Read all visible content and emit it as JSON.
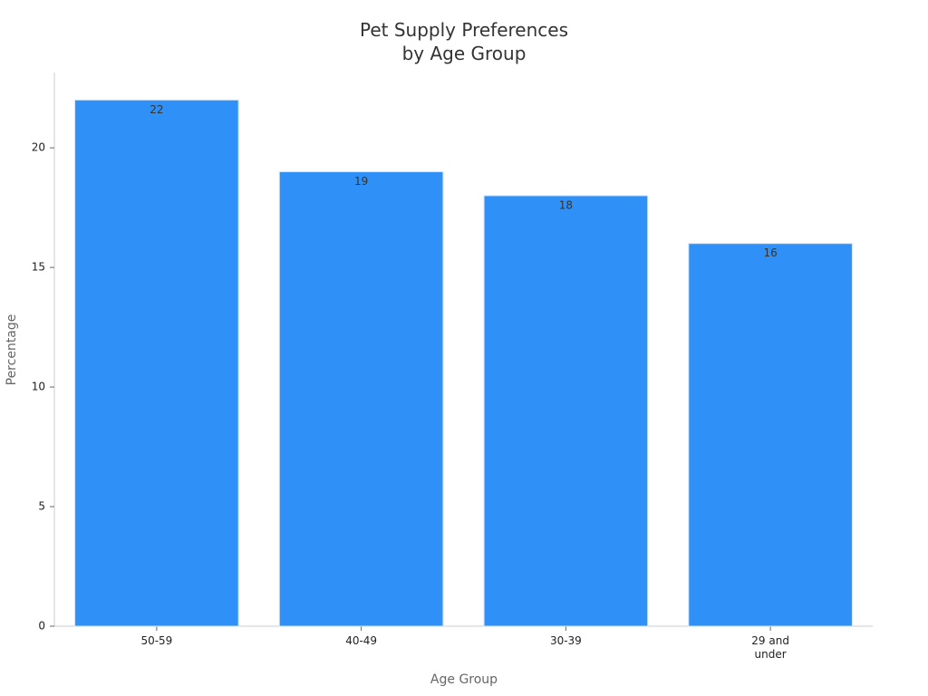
{
  "chart_data": {
    "type": "bar",
    "title": "Pet Supply Preferences\nby Age Group",
    "x_label": "Age Group",
    "y_label": "Percentage",
    "categories": [
      "50-59",
      "40-49",
      "30-39",
      "29 and\nunder"
    ],
    "values": [
      22,
      19,
      18,
      16
    ],
    "color": "#2f91f7",
    "ylim": [
      0,
      23.15
    ],
    "yticks": [
      0,
      5,
      10,
      15,
      20
    ],
    "grid": false
  }
}
